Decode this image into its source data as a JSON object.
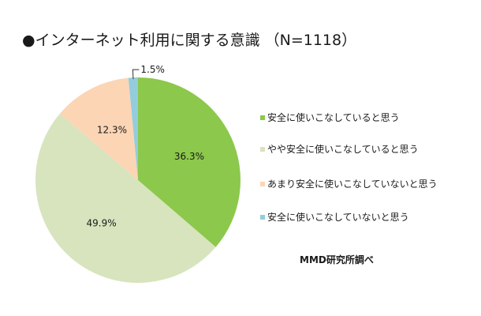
{
  "chart_data": {
    "type": "pie",
    "title": "●インターネット利用に関する意識 （N=1118）",
    "categories": [
      "安全に使いこなしていると思う",
      "やや安全に使いこなしていると思う",
      "あまり安全に使いこなしていないと思う",
      "安全に使いこなしていないと思う"
    ],
    "values": [
      36.3,
      49.9,
      12.3,
      1.5
    ],
    "labels": [
      "36.3%",
      "49.9%",
      "12.3%",
      "1.5%"
    ],
    "colors": [
      "#8cc84b",
      "#d7e4bd",
      "#fcd5b5",
      "#93cddd"
    ],
    "start": "12 o'clock",
    "direction": "clockwise",
    "legend_position": "right"
  },
  "source": "MMD研究所調べ"
}
